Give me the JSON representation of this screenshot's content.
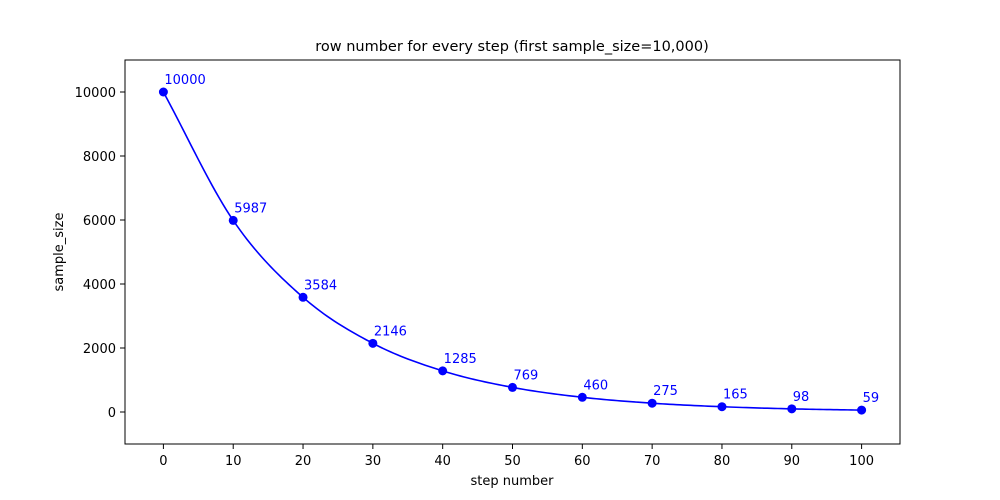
{
  "chart_data": {
    "type": "line",
    "title": "row number for every step  (first sample_size=10,000)",
    "xlabel": "step number",
    "ylabel": "sample_size",
    "xlim": [
      -5.5,
      105.5
    ],
    "ylim": [
      -1000,
      11000
    ],
    "xticks": [
      0,
      10,
      20,
      30,
      40,
      50,
      60,
      70,
      80,
      90,
      100
    ],
    "yticks": [
      0,
      2000,
      4000,
      6000,
      8000,
      10000
    ],
    "grid": false,
    "series": [
      {
        "color": "#0000ff",
        "x": [
          0,
          10,
          20,
          30,
          40,
          50,
          60,
          70,
          80,
          90,
          100
        ],
        "y": [
          10000,
          5987,
          3584,
          2146,
          1285,
          769,
          460,
          275,
          165,
          98,
          59
        ],
        "labels": [
          "10000",
          "5987",
          "3584",
          "2146",
          "1285",
          "769",
          "460",
          "275",
          "165",
          "98",
          "59"
        ]
      }
    ]
  }
}
